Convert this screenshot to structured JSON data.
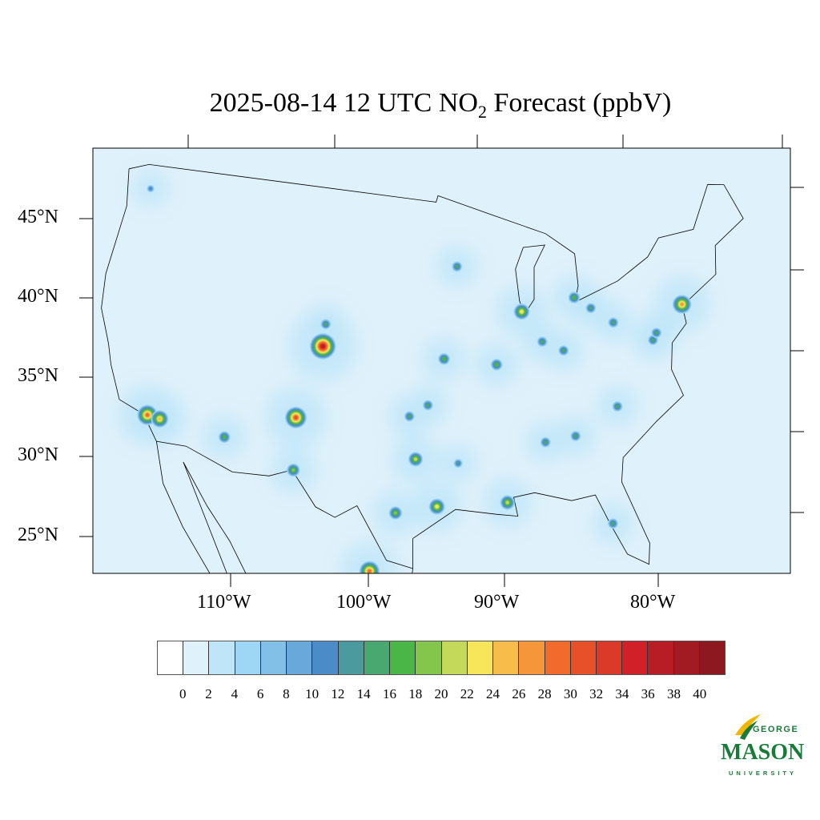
{
  "title": {
    "prefix": "2025-08-14 12 UTC NO",
    "subscript": "2",
    "suffix": " Forecast (ppbV)"
  },
  "lat_labels": [
    "45°N",
    "40°N",
    "35°N",
    "30°N",
    "25°N"
  ],
  "lon_labels": [
    "110°W",
    "100°W",
    "90°W",
    "80°W"
  ],
  "colorbar": {
    "ticks": [
      "0",
      "2",
      "4",
      "6",
      "8",
      "10",
      "12",
      "14",
      "16",
      "18",
      "20",
      "22",
      "24",
      "26",
      "28",
      "30",
      "32",
      "34",
      "36",
      "38",
      "40"
    ],
    "colors": [
      "#ffffff",
      "#dff1fb",
      "#bfe6f8",
      "#9dd7f5",
      "#82c0e8",
      "#68a8db",
      "#4a8bc8",
      "#4a9a9e",
      "#48a870",
      "#4ab648",
      "#84c64c",
      "#c4d95a",
      "#f7e55a",
      "#f7bc4a",
      "#f5963a",
      "#f26a2c",
      "#e8502a",
      "#dc3a28",
      "#d22028",
      "#b81c24",
      "#a21a22",
      "#8e1820"
    ]
  },
  "map_background": "#dff1fb",
  "hotspots": [
    {
      "lon": -104.9,
      "lat": 39.7,
      "value": 36
    },
    {
      "lon": -106.6,
      "lat": 35.1,
      "value": 30
    },
    {
      "lon": -118.2,
      "lat": 34.0,
      "value": 28
    },
    {
      "lon": -117.2,
      "lat": 33.9,
      "value": 24
    },
    {
      "lon": -97.0,
      "lat": 32.8,
      "value": 20
    },
    {
      "lon": -95.4,
      "lat": 29.8,
      "value": 22
    },
    {
      "lon": -98.5,
      "lat": 29.4,
      "value": 18
    },
    {
      "lon": -90.2,
      "lat": 38.6,
      "value": 16
    },
    {
      "lon": -87.7,
      "lat": 41.8,
      "value": 22
    },
    {
      "lon": -74.0,
      "lat": 40.7,
      "value": 26
    },
    {
      "lon": -94.6,
      "lat": 39.1,
      "value": 16
    },
    {
      "lon": -90.1,
      "lat": 29.9,
      "value": 20
    },
    {
      "lon": -93.2,
      "lat": 44.9,
      "value": 14
    },
    {
      "lon": -84.4,
      "lat": 33.7,
      "value": 14
    },
    {
      "lon": -80.8,
      "lat": 35.2,
      "value": 14
    },
    {
      "lon": -112.0,
      "lat": 33.4,
      "value": 16
    },
    {
      "lon": -100.3,
      "lat": 25.7,
      "value": 28
    },
    {
      "lon": -103.3,
      "lat": 20.7,
      "value": 20
    },
    {
      "lon": -106.4,
      "lat": 31.8,
      "value": 18
    },
    {
      "lon": -83.0,
      "lat": 42.3,
      "value": 16
    },
    {
      "lon": -86.2,
      "lat": 39.8,
      "value": 14
    },
    {
      "lon": -84.5,
      "lat": 39.1,
      "value": 14
    },
    {
      "lon": -81.7,
      "lat": 41.5,
      "value": 14
    },
    {
      "lon": -80.0,
      "lat": 40.4,
      "value": 14
    },
    {
      "lon": -77.0,
      "lat": 38.9,
      "value": 14
    },
    {
      "lon": -76.6,
      "lat": 39.3,
      "value": 14
    },
    {
      "lon": -97.5,
      "lat": 35.5,
      "value": 14
    },
    {
      "lon": -96.0,
      "lat": 36.2,
      "value": 14
    },
    {
      "lon": -82.5,
      "lat": 28.0,
      "value": 14
    },
    {
      "lon": -93.7,
      "lat": 32.5,
      "value": 12
    },
    {
      "lon": -104.8,
      "lat": 41.1,
      "value": 14
    },
    {
      "lon": -122.3,
      "lat": 47.6,
      "value": 10
    },
    {
      "lon": -86.8,
      "lat": 33.5,
      "value": 14
    }
  ]
}
